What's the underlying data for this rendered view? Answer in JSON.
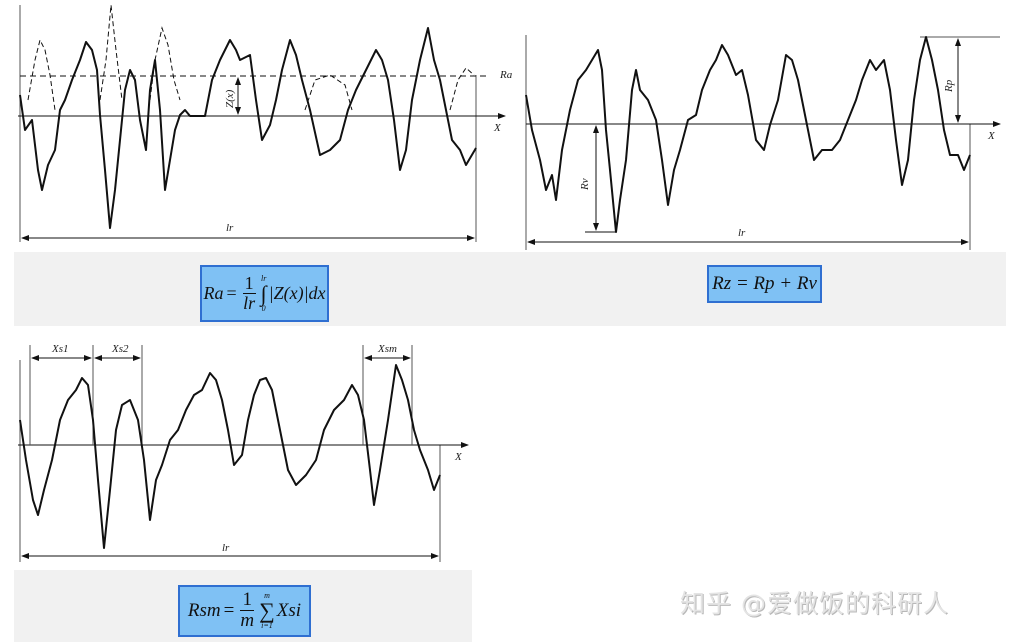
{
  "diagram_ra": {
    "axis_label": "X",
    "mean_line_label": "Ra",
    "deviation_label": "Z(x)",
    "length_label": "lr",
    "formula": {
      "lhs": "Ra",
      "eq": "=",
      "num": "1",
      "den": "lr",
      "upper": "lr",
      "lower": "0",
      "integral": "∫",
      "integrand": "|Z(x)|dx"
    }
  },
  "diagram_rz": {
    "axis_label": "X",
    "peak_label": "Rp",
    "valley_label": "Rv",
    "length_label": "lr",
    "formula": "Rz = Rp + Rv"
  },
  "diagram_rsm": {
    "axis_label": "X",
    "length_label": "lr",
    "spacing_labels": [
      "Xs1",
      "Xs2",
      "Xsm"
    ],
    "formula": {
      "lhs": "Rsm",
      "eq": "=",
      "num": "1",
      "den": "m",
      "upper": "m",
      "lower": "i=1",
      "sum": "∑",
      "term": "Xsi"
    }
  },
  "colors": {
    "formula_bg": "#7fc1f4",
    "formula_border": "#2f6fd1",
    "line": "#111111"
  },
  "watermark": "知乎 @爱做饭的科研人"
}
